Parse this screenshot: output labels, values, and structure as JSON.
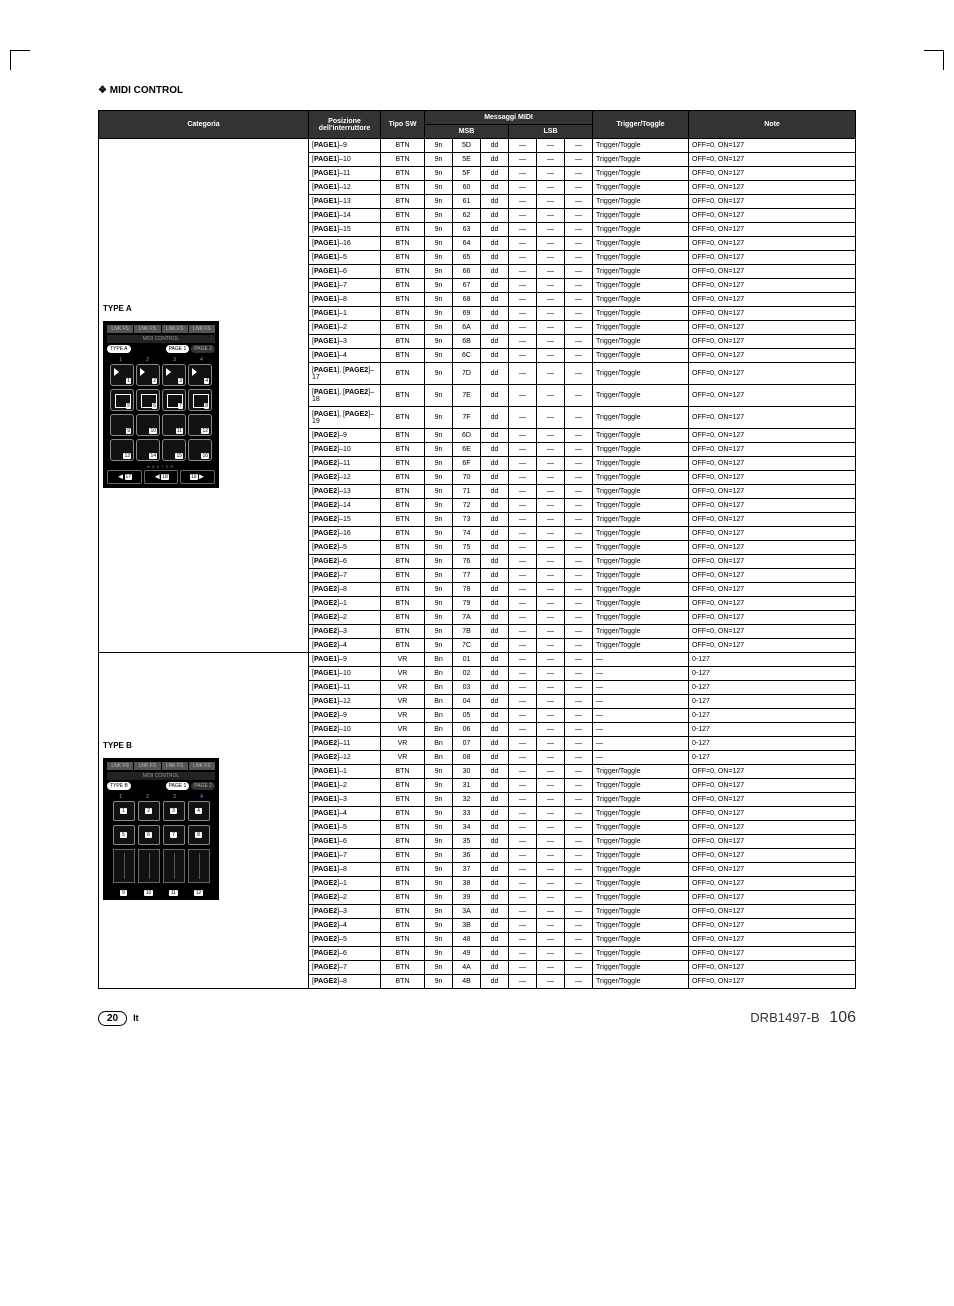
{
  "title": "MIDI CONTROL",
  "headers": {
    "categoria": "Categoria",
    "posizione": "Posizione dell'interruttore",
    "tiposw": "Tipo SW",
    "messaggi": "Messaggi MIDI",
    "msb": "MSB",
    "lsb": "LSB",
    "trigger": "Trigger/Toggle",
    "note": "Note"
  },
  "typeA": {
    "label": "TYPE A",
    "rows": [
      {
        "pos": "[PAGE1]–9",
        "sw": "BTN",
        "m1": "9n",
        "m2": "5D",
        "m3": "dd",
        "l1": "—",
        "l2": "—",
        "l3": "—",
        "tt": "Trigger/Toggle",
        "note": "OFF=0, ON=127"
      },
      {
        "pos": "[PAGE1]–10",
        "sw": "BTN",
        "m1": "9n",
        "m2": "5E",
        "m3": "dd",
        "l1": "—",
        "l2": "—",
        "l3": "—",
        "tt": "Trigger/Toggle",
        "note": "OFF=0, ON=127"
      },
      {
        "pos": "[PAGE1]–11",
        "sw": "BTN",
        "m1": "9n",
        "m2": "5F",
        "m3": "dd",
        "l1": "—",
        "l2": "—",
        "l3": "—",
        "tt": "Trigger/Toggle",
        "note": "OFF=0, ON=127"
      },
      {
        "pos": "[PAGE1]–12",
        "sw": "BTN",
        "m1": "9n",
        "m2": "60",
        "m3": "dd",
        "l1": "—",
        "l2": "—",
        "l3": "—",
        "tt": "Trigger/Toggle",
        "note": "OFF=0, ON=127"
      },
      {
        "pos": "[PAGE1]–13",
        "sw": "BTN",
        "m1": "9n",
        "m2": "61",
        "m3": "dd",
        "l1": "—",
        "l2": "—",
        "l3": "—",
        "tt": "Trigger/Toggle",
        "note": "OFF=0, ON=127"
      },
      {
        "pos": "[PAGE1]–14",
        "sw": "BTN",
        "m1": "9n",
        "m2": "62",
        "m3": "dd",
        "l1": "—",
        "l2": "—",
        "l3": "—",
        "tt": "Trigger/Toggle",
        "note": "OFF=0, ON=127"
      },
      {
        "pos": "[PAGE1]–15",
        "sw": "BTN",
        "m1": "9n",
        "m2": "63",
        "m3": "dd",
        "l1": "—",
        "l2": "—",
        "l3": "—",
        "tt": "Trigger/Toggle",
        "note": "OFF=0, ON=127"
      },
      {
        "pos": "[PAGE1]–16",
        "sw": "BTN",
        "m1": "9n",
        "m2": "64",
        "m3": "dd",
        "l1": "—",
        "l2": "—",
        "l3": "—",
        "tt": "Trigger/Toggle",
        "note": "OFF=0, ON=127"
      },
      {
        "pos": "[PAGE1]–5",
        "sw": "BTN",
        "m1": "9n",
        "m2": "65",
        "m3": "dd",
        "l1": "—",
        "l2": "—",
        "l3": "—",
        "tt": "Trigger/Toggle",
        "note": "OFF=0, ON=127"
      },
      {
        "pos": "[PAGE1]–6",
        "sw": "BTN",
        "m1": "9n",
        "m2": "66",
        "m3": "dd",
        "l1": "—",
        "l2": "—",
        "l3": "—",
        "tt": "Trigger/Toggle",
        "note": "OFF=0, ON=127"
      },
      {
        "pos": "[PAGE1]–7",
        "sw": "BTN",
        "m1": "9n",
        "m2": "67",
        "m3": "dd",
        "l1": "—",
        "l2": "—",
        "l3": "—",
        "tt": "Trigger/Toggle",
        "note": "OFF=0, ON=127"
      },
      {
        "pos": "[PAGE1]–8",
        "sw": "BTN",
        "m1": "9n",
        "m2": "68",
        "m3": "dd",
        "l1": "—",
        "l2": "—",
        "l3": "—",
        "tt": "Trigger/Toggle",
        "note": "OFF=0, ON=127"
      },
      {
        "pos": "[PAGE1]–1",
        "sw": "BTN",
        "m1": "9n",
        "m2": "69",
        "m3": "dd",
        "l1": "—",
        "l2": "—",
        "l3": "—",
        "tt": "Trigger/Toggle",
        "note": "OFF=0, ON=127"
      },
      {
        "pos": "[PAGE1]–2",
        "sw": "BTN",
        "m1": "9n",
        "m2": "6A",
        "m3": "dd",
        "l1": "—",
        "l2": "—",
        "l3": "—",
        "tt": "Trigger/Toggle",
        "note": "OFF=0, ON=127"
      },
      {
        "pos": "[PAGE1]–3",
        "sw": "BTN",
        "m1": "9n",
        "m2": "6B",
        "m3": "dd",
        "l1": "—",
        "l2": "—",
        "l3": "—",
        "tt": "Trigger/Toggle",
        "note": "OFF=0, ON=127"
      },
      {
        "pos": "[PAGE1]–4",
        "sw": "BTN",
        "m1": "9n",
        "m2": "6C",
        "m3": "dd",
        "l1": "—",
        "l2": "—",
        "l3": "—",
        "tt": "Trigger/Toggle",
        "note": "OFF=0, ON=127"
      },
      {
        "pos": "[PAGE1], [PAGE2]–17",
        "sw": "BTN",
        "m1": "9n",
        "m2": "7D",
        "m3": "dd",
        "l1": "—",
        "l2": "—",
        "l3": "—",
        "tt": "Trigger/Toggle",
        "note": "OFF=0, ON=127",
        "tall": true
      },
      {
        "pos": "[PAGE1], [PAGE2]–18",
        "sw": "BTN",
        "m1": "9n",
        "m2": "7E",
        "m3": "dd",
        "l1": "—",
        "l2": "—",
        "l3": "—",
        "tt": "Trigger/Toggle",
        "note": "OFF=0, ON=127",
        "tall": true
      },
      {
        "pos": "[PAGE1], [PAGE2]–19",
        "sw": "BTN",
        "m1": "9n",
        "m2": "7F",
        "m3": "dd",
        "l1": "—",
        "l2": "—",
        "l3": "—",
        "tt": "Trigger/Toggle",
        "note": "OFF=0, ON=127",
        "tall": true
      },
      {
        "pos": "[PAGE2]–9",
        "sw": "BTN",
        "m1": "9n",
        "m2": "6D",
        "m3": "dd",
        "l1": "—",
        "l2": "—",
        "l3": "—",
        "tt": "Trigger/Toggle",
        "note": "OFF=0, ON=127"
      },
      {
        "pos": "[PAGE2]–10",
        "sw": "BTN",
        "m1": "9n",
        "m2": "6E",
        "m3": "dd",
        "l1": "—",
        "l2": "—",
        "l3": "—",
        "tt": "Trigger/Toggle",
        "note": "OFF=0, ON=127"
      },
      {
        "pos": "[PAGE2]–11",
        "sw": "BTN",
        "m1": "9n",
        "m2": "6F",
        "m3": "dd",
        "l1": "—",
        "l2": "—",
        "l3": "—",
        "tt": "Trigger/Toggle",
        "note": "OFF=0, ON=127"
      },
      {
        "pos": "[PAGE2]–12",
        "sw": "BTN",
        "m1": "9n",
        "m2": "70",
        "m3": "dd",
        "l1": "—",
        "l2": "—",
        "l3": "—",
        "tt": "Trigger/Toggle",
        "note": "OFF=0, ON=127"
      },
      {
        "pos": "[PAGE2]–13",
        "sw": "BTN",
        "m1": "9n",
        "m2": "71",
        "m3": "dd",
        "l1": "—",
        "l2": "—",
        "l3": "—",
        "tt": "Trigger/Toggle",
        "note": "OFF=0, ON=127"
      },
      {
        "pos": "[PAGE2]–14",
        "sw": "BTN",
        "m1": "9n",
        "m2": "72",
        "m3": "dd",
        "l1": "—",
        "l2": "—",
        "l3": "—",
        "tt": "Trigger/Toggle",
        "note": "OFF=0, ON=127"
      },
      {
        "pos": "[PAGE2]–15",
        "sw": "BTN",
        "m1": "9n",
        "m2": "73",
        "m3": "dd",
        "l1": "—",
        "l2": "—",
        "l3": "—",
        "tt": "Trigger/Toggle",
        "note": "OFF=0, ON=127"
      },
      {
        "pos": "[PAGE2]–16",
        "sw": "BTN",
        "m1": "9n",
        "m2": "74",
        "m3": "dd",
        "l1": "—",
        "l2": "—",
        "l3": "—",
        "tt": "Trigger/Toggle",
        "note": "OFF=0, ON=127"
      },
      {
        "pos": "[PAGE2]–5",
        "sw": "BTN",
        "m1": "9n",
        "m2": "75",
        "m3": "dd",
        "l1": "—",
        "l2": "—",
        "l3": "—",
        "tt": "Trigger/Toggle",
        "note": "OFF=0, ON=127"
      },
      {
        "pos": "[PAGE2]–6",
        "sw": "BTN",
        "m1": "9n",
        "m2": "76",
        "m3": "dd",
        "l1": "—",
        "l2": "—",
        "l3": "—",
        "tt": "Trigger/Toggle",
        "note": "OFF=0, ON=127"
      },
      {
        "pos": "[PAGE2]–7",
        "sw": "BTN",
        "m1": "9n",
        "m2": "77",
        "m3": "dd",
        "l1": "—",
        "l2": "—",
        "l3": "—",
        "tt": "Trigger/Toggle",
        "note": "OFF=0, ON=127"
      },
      {
        "pos": "[PAGE2]–8",
        "sw": "BTN",
        "m1": "9n",
        "m2": "78",
        "m3": "dd",
        "l1": "—",
        "l2": "—",
        "l3": "—",
        "tt": "Trigger/Toggle",
        "note": "OFF=0, ON=127"
      },
      {
        "pos": "[PAGE2]–1",
        "sw": "BTN",
        "m1": "9n",
        "m2": "79",
        "m3": "dd",
        "l1": "—",
        "l2": "—",
        "l3": "—",
        "tt": "Trigger/Toggle",
        "note": "OFF=0, ON=127"
      },
      {
        "pos": "[PAGE2]–2",
        "sw": "BTN",
        "m1": "9n",
        "m2": "7A",
        "m3": "dd",
        "l1": "—",
        "l2": "—",
        "l3": "—",
        "tt": "Trigger/Toggle",
        "note": "OFF=0, ON=127"
      },
      {
        "pos": "[PAGE2]–3",
        "sw": "BTN",
        "m1": "9n",
        "m2": "7B",
        "m3": "dd",
        "l1": "—",
        "l2": "—",
        "l3": "—",
        "tt": "Trigger/Toggle",
        "note": "OFF=0, ON=127"
      },
      {
        "pos": "[PAGE2]–4",
        "sw": "BTN",
        "m1": "9n",
        "m2": "7C",
        "m3": "dd",
        "l1": "—",
        "l2": "—",
        "l3": "—",
        "tt": "Trigger/Toggle",
        "note": "OFF=0, ON=127"
      }
    ]
  },
  "typeB": {
    "label": "TYPE B",
    "rows": [
      {
        "pos": "[PAGE1]–9",
        "sw": "VR",
        "m1": "Bn",
        "m2": "01",
        "m3": "dd",
        "l1": "—",
        "l2": "—",
        "l3": "—",
        "tt": "—",
        "note": "0-127"
      },
      {
        "pos": "[PAGE1]–10",
        "sw": "VR",
        "m1": "Bn",
        "m2": "02",
        "m3": "dd",
        "l1": "—",
        "l2": "—",
        "l3": "—",
        "tt": "—",
        "note": "0-127"
      },
      {
        "pos": "[PAGE1]–11",
        "sw": "VR",
        "m1": "Bn",
        "m2": "03",
        "m3": "dd",
        "l1": "—",
        "l2": "—",
        "l3": "—",
        "tt": "—",
        "note": "0-127"
      },
      {
        "pos": "[PAGE1]–12",
        "sw": "VR",
        "m1": "Bn",
        "m2": "04",
        "m3": "dd",
        "l1": "—",
        "l2": "—",
        "l3": "—",
        "tt": "—",
        "note": "0-127"
      },
      {
        "pos": "[PAGE2]–9",
        "sw": "VR",
        "m1": "Bn",
        "m2": "05",
        "m3": "dd",
        "l1": "—",
        "l2": "—",
        "l3": "—",
        "tt": "—",
        "note": "0-127"
      },
      {
        "pos": "[PAGE2]–10",
        "sw": "VR",
        "m1": "Bn",
        "m2": "06",
        "m3": "dd",
        "l1": "—",
        "l2": "—",
        "l3": "—",
        "tt": "—",
        "note": "0-127"
      },
      {
        "pos": "[PAGE2]–11",
        "sw": "VR",
        "m1": "Bn",
        "m2": "07",
        "m3": "dd",
        "l1": "—",
        "l2": "—",
        "l3": "—",
        "tt": "—",
        "note": "0-127"
      },
      {
        "pos": "[PAGE2]–12",
        "sw": "VR",
        "m1": "Bn",
        "m2": "08",
        "m3": "dd",
        "l1": "—",
        "l2": "—",
        "l3": "—",
        "tt": "—",
        "note": "0-127"
      },
      {
        "pos": "[PAGE1]–1",
        "sw": "BTN",
        "m1": "9n",
        "m2": "30",
        "m3": "dd",
        "l1": "—",
        "l2": "—",
        "l3": "—",
        "tt": "Trigger/Toggle",
        "note": "OFF=0, ON=127"
      },
      {
        "pos": "[PAGE1]–2",
        "sw": "BTN",
        "m1": "9n",
        "m2": "31",
        "m3": "dd",
        "l1": "—",
        "l2": "—",
        "l3": "—",
        "tt": "Trigger/Toggle",
        "note": "OFF=0, ON=127"
      },
      {
        "pos": "[PAGE1]–3",
        "sw": "BTN",
        "m1": "9n",
        "m2": "32",
        "m3": "dd",
        "l1": "—",
        "l2": "—",
        "l3": "—",
        "tt": "Trigger/Toggle",
        "note": "OFF=0, ON=127"
      },
      {
        "pos": "[PAGE1]–4",
        "sw": "BTN",
        "m1": "9n",
        "m2": "33",
        "m3": "dd",
        "l1": "—",
        "l2": "—",
        "l3": "—",
        "tt": "Trigger/Toggle",
        "note": "OFF=0, ON=127"
      },
      {
        "pos": "[PAGE1]–5",
        "sw": "BTN",
        "m1": "9n",
        "m2": "34",
        "m3": "dd",
        "l1": "—",
        "l2": "—",
        "l3": "—",
        "tt": "Trigger/Toggle",
        "note": "OFF=0, ON=127"
      },
      {
        "pos": "[PAGE1]–6",
        "sw": "BTN",
        "m1": "9n",
        "m2": "35",
        "m3": "dd",
        "l1": "—",
        "l2": "—",
        "l3": "—",
        "tt": "Trigger/Toggle",
        "note": "OFF=0, ON=127"
      },
      {
        "pos": "[PAGE1]–7",
        "sw": "BTN",
        "m1": "9n",
        "m2": "36",
        "m3": "dd",
        "l1": "—",
        "l2": "—",
        "l3": "—",
        "tt": "Trigger/Toggle",
        "note": "OFF=0, ON=127"
      },
      {
        "pos": "[PAGE1]–8",
        "sw": "BTN",
        "m1": "9n",
        "m2": "37",
        "m3": "dd",
        "l1": "—",
        "l2": "—",
        "l3": "—",
        "tt": "Trigger/Toggle",
        "note": "OFF=0, ON=127"
      },
      {
        "pos": "[PAGE2]–1",
        "sw": "BTN",
        "m1": "9n",
        "m2": "38",
        "m3": "dd",
        "l1": "—",
        "l2": "—",
        "l3": "—",
        "tt": "Trigger/Toggle",
        "note": "OFF=0, ON=127"
      },
      {
        "pos": "[PAGE2]–2",
        "sw": "BTN",
        "m1": "9n",
        "m2": "39",
        "m3": "dd",
        "l1": "—",
        "l2": "—",
        "l3": "—",
        "tt": "Trigger/Toggle",
        "note": "OFF=0, ON=127"
      },
      {
        "pos": "[PAGE2]–3",
        "sw": "BTN",
        "m1": "9n",
        "m2": "3A",
        "m3": "dd",
        "l1": "—",
        "l2": "—",
        "l3": "—",
        "tt": "Trigger/Toggle",
        "note": "OFF=0, ON=127"
      },
      {
        "pos": "[PAGE2]–4",
        "sw": "BTN",
        "m1": "9n",
        "m2": "3B",
        "m3": "dd",
        "l1": "—",
        "l2": "—",
        "l3": "—",
        "tt": "Trigger/Toggle",
        "note": "OFF=0, ON=127"
      },
      {
        "pos": "[PAGE2]–5",
        "sw": "BTN",
        "m1": "9n",
        "m2": "48",
        "m3": "dd",
        "l1": "—",
        "l2": "—",
        "l3": "—",
        "tt": "Trigger/Toggle",
        "note": "OFF=0, ON=127"
      },
      {
        "pos": "[PAGE2]–6",
        "sw": "BTN",
        "m1": "9n",
        "m2": "49",
        "m3": "dd",
        "l1": "—",
        "l2": "—",
        "l3": "—",
        "tt": "Trigger/Toggle",
        "note": "OFF=0, ON=127"
      },
      {
        "pos": "[PAGE2]–7",
        "sw": "BTN",
        "m1": "9n",
        "m2": "4A",
        "m3": "dd",
        "l1": "—",
        "l2": "—",
        "l3": "—",
        "tt": "Trigger/Toggle",
        "note": "OFF=0, ON=127"
      },
      {
        "pos": "[PAGE2]–8",
        "sw": "BTN",
        "m1": "9n",
        "m2": "4B",
        "m3": "dd",
        "l1": "—",
        "l2": "—",
        "l3": "—",
        "tt": "Trigger/Toggle",
        "note": "OFF=0, ON=127"
      }
    ]
  },
  "footer": {
    "page": "20",
    "lang": "It",
    "docid": "DRB1497-B",
    "num": "106"
  },
  "styling": {
    "header_bg": "#333333",
    "header_fg": "#ffffff",
    "border_color": "#000000",
    "font_size_body": 7,
    "font_size_heading": 10
  }
}
